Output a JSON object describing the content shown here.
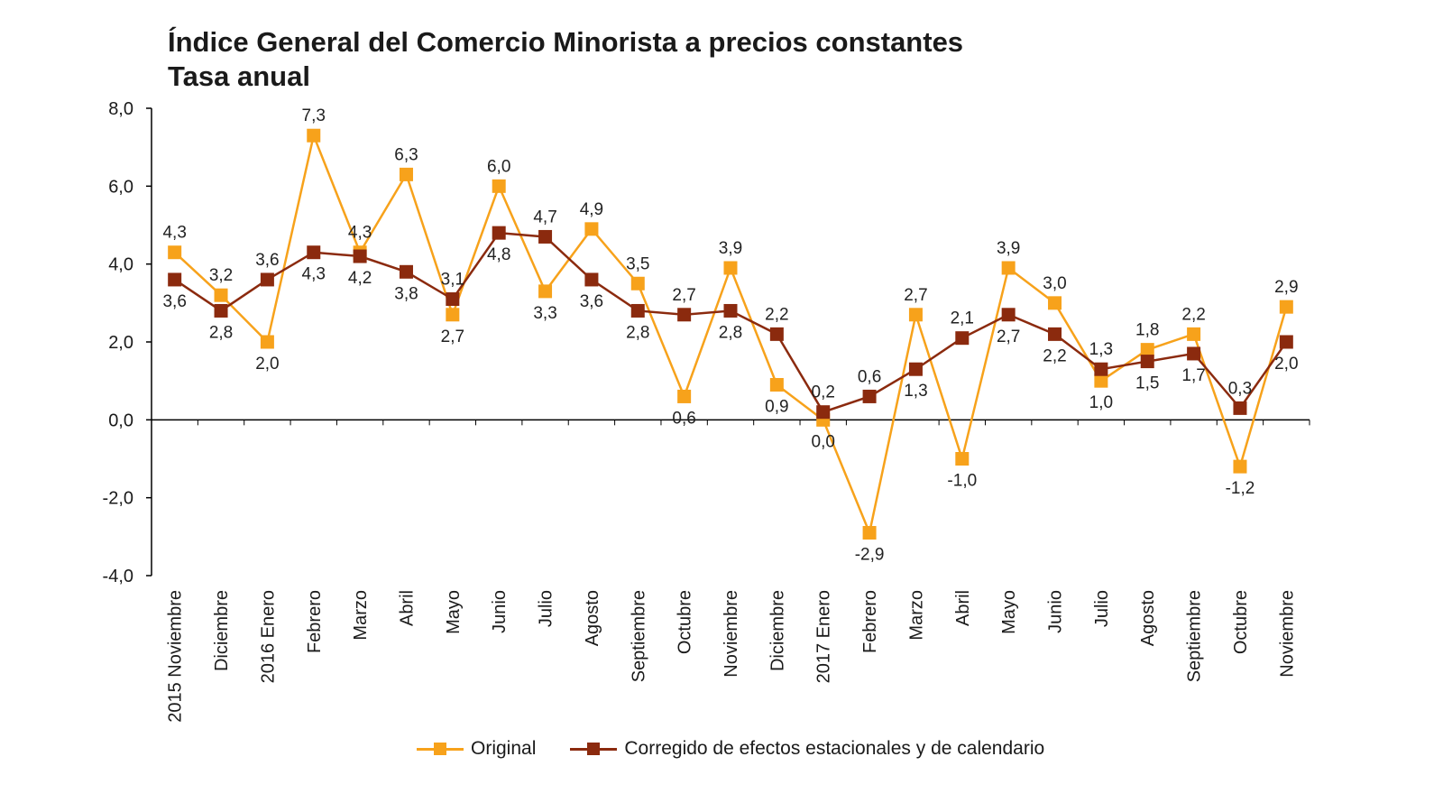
{
  "chart_data": {
    "type": "line",
    "title": "Índice General del Comercio Minorista a precios constantes",
    "subtitle": "Tasa anual",
    "xlabel": "",
    "ylabel": "",
    "ylim": [
      -4.0,
      8.0
    ],
    "yticks": [
      "8,0",
      "6,0",
      "4,0",
      "2,0",
      "0,0",
      "-2,0",
      "-4,0"
    ],
    "ytick_values": [
      8,
      6,
      4,
      2,
      0,
      -2,
      -4
    ],
    "grid": false,
    "legend_position": "bottom",
    "categories": [
      "2015 Noviembre",
      "Diciembre",
      "2016 Enero",
      "Febrero",
      "Marzo",
      "Abril",
      "Mayo",
      "Junio",
      "Julio",
      "Agosto",
      "Septiembre",
      "Octubre",
      "Noviembre",
      "Diciembre",
      "2017 Enero",
      "Febrero",
      "Marzo",
      "Abril",
      "Mayo",
      "Junio",
      "Julio",
      "Agosto",
      "Septiembre",
      "Octubre",
      "Noviembre"
    ],
    "series": [
      {
        "name": "Original",
        "color": "#f7a21b",
        "values": [
          4.3,
          3.2,
          2.0,
          7.3,
          4.3,
          6.3,
          2.7,
          6.0,
          3.3,
          4.9,
          3.5,
          0.6,
          3.9,
          0.9,
          0.0,
          -2.9,
          2.7,
          -1.0,
          3.9,
          3.0,
          1.0,
          1.8,
          2.2,
          -1.2,
          2.9
        ],
        "labels": [
          "4,3",
          "3,2",
          "2,0",
          "7,3",
          "4,3",
          "6,3",
          "2,7",
          "6,0",
          "3,3",
          "4,9",
          "3,5",
          "0,6",
          "3,9",
          "0,9",
          "0,0",
          "-2,9",
          "2,7",
          "-1,0",
          "3,9",
          "3,0",
          "1,0",
          "1,8",
          "2,2",
          "-1,2",
          "2,9"
        ],
        "label_pos": [
          "above",
          "above",
          "below",
          "above",
          "above",
          "above",
          "below",
          "above",
          "below",
          "above",
          "above",
          "below",
          "above",
          "below",
          "below",
          "below",
          "above",
          "below",
          "above",
          "above",
          "below",
          "above",
          "above",
          "below",
          "above"
        ]
      },
      {
        "name": "Corregido de efectos estacionales y de calendario",
        "color": "#8b2a0e",
        "values": [
          3.6,
          2.8,
          3.6,
          4.3,
          4.2,
          3.8,
          3.1,
          4.8,
          4.7,
          3.6,
          2.8,
          2.7,
          2.8,
          2.2,
          0.2,
          0.6,
          1.3,
          2.1,
          2.7,
          2.2,
          1.3,
          1.5,
          1.7,
          0.3,
          2.0
        ],
        "labels": [
          "3,6",
          "2,8",
          "3,6",
          "4,3",
          "4,2",
          "3,8",
          "3,1",
          "4,8",
          "4,7",
          "3,6",
          "2,8",
          "2,7",
          "2,8",
          "2,2",
          "0,2",
          "0,6",
          "1,3",
          "2,1",
          "2,7",
          "2,2",
          "1,3",
          "1,5",
          "1,7",
          "0,3",
          "2,0"
        ],
        "label_pos": [
          "below",
          "below",
          "above",
          "below",
          "below",
          "below",
          "above",
          "below",
          "above",
          "below",
          "below",
          "above",
          "below",
          "above",
          "above",
          "above",
          "below",
          "above",
          "below",
          "below",
          "above",
          "below",
          "below",
          "above",
          "below"
        ]
      }
    ]
  }
}
